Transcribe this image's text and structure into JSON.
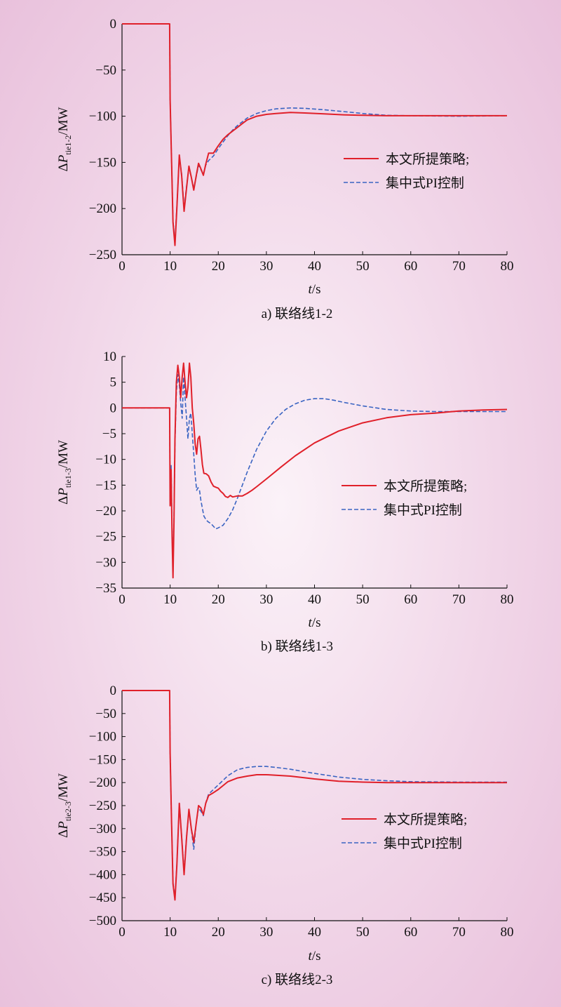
{
  "chart_data": [
    {
      "type": "line",
      "caption": "a) 联络线1-2",
      "xlabel_var": "t",
      "xlabel_unit": "/s",
      "ylabel_delta": "Δ",
      "ylabel_var": "P",
      "ylabel_sub": "tie1-2",
      "ylabel_unit": "/MW",
      "xlim": [
        0,
        80
      ],
      "ylim": [
        -250,
        0
      ],
      "xticks": [
        0,
        10,
        20,
        30,
        40,
        50,
        60,
        70,
        80
      ],
      "yticks": [
        0,
        -50,
        -100,
        -150,
        -200,
        -250
      ],
      "legend_position": "center-right",
      "series": [
        {
          "name": "本文所提策略;",
          "color": "#e0202a",
          "dash": "solid",
          "x": [
            0,
            9.9,
            10,
            10.3,
            10.6,
            11,
            11.4,
            11.9,
            12.4,
            12.9,
            13.4,
            13.9,
            14.4,
            14.9,
            15.4,
            15.9,
            16.4,
            16.9,
            17.4,
            18,
            19,
            20,
            21,
            22,
            23,
            24,
            25,
            26,
            28,
            30,
            32,
            35,
            38,
            42,
            46,
            50,
            55,
            60,
            70,
            80
          ],
          "y": [
            0,
            0,
            -82,
            -150,
            -215,
            -240,
            -200,
            -142,
            -165,
            -203,
            -178,
            -154,
            -166,
            -180,
            -165,
            -151,
            -157,
            -164,
            -152,
            -140,
            -140,
            -132,
            -125,
            -120,
            -116,
            -112,
            -108,
            -104,
            -100,
            -98,
            -97,
            -96,
            -96.5,
            -97.5,
            -98.5,
            -99,
            -99.5,
            -99.5,
            -99.5,
            -99.5
          ]
        },
        {
          "name": "集中式PI控制",
          "color": "#3a64c2",
          "dash": "dashed",
          "x": [
            0,
            9.9,
            10,
            10.3,
            10.6,
            11,
            11.4,
            11.9,
            12.4,
            12.9,
            13.4,
            13.9,
            14.4,
            14.9,
            15.4,
            15.9,
            16.4,
            16.9,
            17.4,
            18,
            19,
            20,
            21,
            22,
            23,
            24,
            25,
            26,
            28,
            30,
            32,
            35,
            38,
            42,
            46,
            50,
            55,
            60,
            70,
            80
          ],
          "y": [
            0,
            0,
            -82,
            -150,
            -213,
            -236,
            -198,
            -144,
            -163,
            -200,
            -176,
            -156,
            -166,
            -178,
            -166,
            -153,
            -158,
            -163,
            -153,
            -148,
            -143,
            -135,
            -128,
            -121,
            -115,
            -110,
            -106,
            -102,
            -97,
            -94,
            -92,
            -91,
            -91.5,
            -93,
            -95,
            -97,
            -99,
            -99.5,
            -100,
            -99.5
          ]
        }
      ]
    },
    {
      "type": "line",
      "caption": "b) 联络线1-3",
      "xlabel_var": "t",
      "xlabel_unit": "/s",
      "ylabel_delta": "Δ",
      "ylabel_var": "P",
      "ylabel_sub": "tie1-3",
      "ylabel_unit": "/MW",
      "xlim": [
        0,
        80
      ],
      "ylim": [
        -35,
        10
      ],
      "xticks": [
        0,
        10,
        20,
        30,
        40,
        50,
        60,
        70,
        80
      ],
      "yticks": [
        10,
        5,
        0,
        -5,
        -10,
        -15,
        -20,
        -25,
        -30,
        -35
      ],
      "legend_position": "center-right",
      "series": [
        {
          "name": "本文所提策略;",
          "color": "#e0202a",
          "dash": "solid",
          "x": [
            0,
            9.9,
            10,
            10.2,
            10.4,
            10.6,
            10.8,
            11,
            11.3,
            11.6,
            11.9,
            12.2,
            12.5,
            12.8,
            13.1,
            13.4,
            13.7,
            14,
            14.3,
            14.6,
            14.9,
            15.2,
            15.5,
            15.8,
            16.1,
            16.4,
            16.7,
            17,
            17.5,
            18,
            18.5,
            19,
            19.5,
            20,
            20.5,
            21,
            21.5,
            22,
            22.5,
            23,
            24,
            25,
            26,
            27,
            28,
            30,
            33,
            36,
            40,
            45,
            50,
            55,
            60,
            65,
            70,
            75,
            80
          ],
          "y": [
            0,
            0,
            -19,
            -12,
            -25,
            -33,
            -22,
            -6,
            5,
            8.3,
            6,
            2,
            6,
            8.7,
            5,
            2,
            4,
            8.7,
            6,
            0,
            -3,
            -7,
            -9,
            -6,
            -5.5,
            -8,
            -11,
            -12.7,
            -12.8,
            -13.2,
            -14.4,
            -15.2,
            -15.4,
            -15.6,
            -16.2,
            -16.6,
            -17.2,
            -17.4,
            -17,
            -17.3,
            -17.1,
            -17.1,
            -16.6,
            -16,
            -15.3,
            -13.8,
            -11.5,
            -9.3,
            -6.8,
            -4.5,
            -2.9,
            -1.9,
            -1.3,
            -1,
            -0.6,
            -0.4,
            -0.3
          ]
        },
        {
          "name": "集中式PI控制",
          "color": "#3a64c2",
          "dash": "dashed",
          "x": [
            0,
            9.9,
            10,
            10.2,
            10.4,
            10.6,
            10.8,
            11,
            11.3,
            11.6,
            11.9,
            12.2,
            12.5,
            12.8,
            13.1,
            13.4,
            13.7,
            14,
            14.3,
            14.6,
            14.9,
            15.2,
            15.5,
            15.8,
            16.1,
            16.4,
            16.7,
            17,
            17.5,
            18,
            18.5,
            19,
            19.5,
            20,
            21,
            22,
            23,
            24,
            25,
            26,
            28,
            30,
            32,
            34,
            36,
            38,
            40,
            42,
            44,
            46,
            50,
            55,
            60,
            65,
            70,
            75,
            80
          ],
          "y": [
            0,
            0,
            -18,
            -11,
            -24,
            -32,
            -21,
            -7,
            3,
            6.5,
            4.5,
            1,
            -2,
            6,
            2,
            -2,
            -6,
            -2,
            -1,
            -5,
            -9,
            -13,
            -16,
            -15.5,
            -16,
            -18,
            -19.5,
            -21,
            -21.8,
            -22.2,
            -22.5,
            -23,
            -23.5,
            -23.3,
            -22.8,
            -21.5,
            -19.8,
            -17.5,
            -15,
            -12.5,
            -8,
            -4.5,
            -2,
            -0.3,
            0.8,
            1.5,
            1.8,
            1.8,
            1.5,
            1.1,
            0.4,
            -0.3,
            -0.6,
            -0.7,
            -0.7,
            -0.7,
            -0.7
          ]
        }
      ]
    },
    {
      "type": "line",
      "caption": "c) 联络线2-3",
      "xlabel_var": "t",
      "xlabel_unit": "/s",
      "ylabel_delta": "Δ",
      "ylabel_var": "P",
      "ylabel_sub": "tie2-3",
      "ylabel_unit": "/MW",
      "xlim": [
        0,
        80
      ],
      "ylim": [
        -500,
        0
      ],
      "xticks": [
        0,
        10,
        20,
        30,
        40,
        50,
        60,
        70,
        80
      ],
      "yticks": [
        0,
        -50,
        -100,
        -150,
        -200,
        -250,
        -300,
        -350,
        -400,
        -450,
        -500
      ],
      "legend_position": "center-right",
      "series": [
        {
          "name": "本文所提策略;",
          "color": "#e0202a",
          "dash": "solid",
          "x": [
            0,
            9.9,
            10,
            10.3,
            10.6,
            11,
            11.4,
            11.9,
            12.4,
            12.9,
            13.4,
            13.9,
            14.4,
            14.9,
            15.4,
            15.9,
            16.4,
            16.9,
            17.4,
            18,
            19,
            20,
            22,
            24,
            26,
            28,
            30,
            32,
            35,
            40,
            45,
            50,
            55,
            60,
            70,
            80
          ],
          "y": [
            0,
            0,
            -135,
            -290,
            -420,
            -455,
            -380,
            -245,
            -320,
            -400,
            -320,
            -258,
            -300,
            -330,
            -290,
            -250,
            -255,
            -270,
            -245,
            -228,
            -222,
            -215,
            -198,
            -190,
            -186,
            -183,
            -183,
            -184,
            -186,
            -192,
            -197,
            -199,
            -200,
            -200,
            -200,
            -200
          ]
        },
        {
          "name": "集中式PI控制",
          "color": "#3a64c2",
          "dash": "dashed",
          "x": [
            0,
            9.9,
            10,
            10.3,
            10.6,
            11,
            11.4,
            11.9,
            12.4,
            12.9,
            13.4,
            13.9,
            14.4,
            14.9,
            15.4,
            15.9,
            16.4,
            16.9,
            17.4,
            18,
            19,
            20,
            22,
            24,
            26,
            28,
            30,
            32,
            35,
            40,
            45,
            50,
            55,
            60,
            70,
            80
          ],
          "y": [
            0,
            0,
            -135,
            -290,
            -418,
            -450,
            -378,
            -245,
            -318,
            -395,
            -318,
            -262,
            -300,
            -345,
            -290,
            -255,
            -262,
            -272,
            -244,
            -225,
            -215,
            -205,
            -185,
            -172,
            -167,
            -165,
            -165,
            -167,
            -171,
            -180,
            -188,
            -193,
            -196,
            -198,
            -199,
            -199
          ]
        }
      ]
    }
  ]
}
